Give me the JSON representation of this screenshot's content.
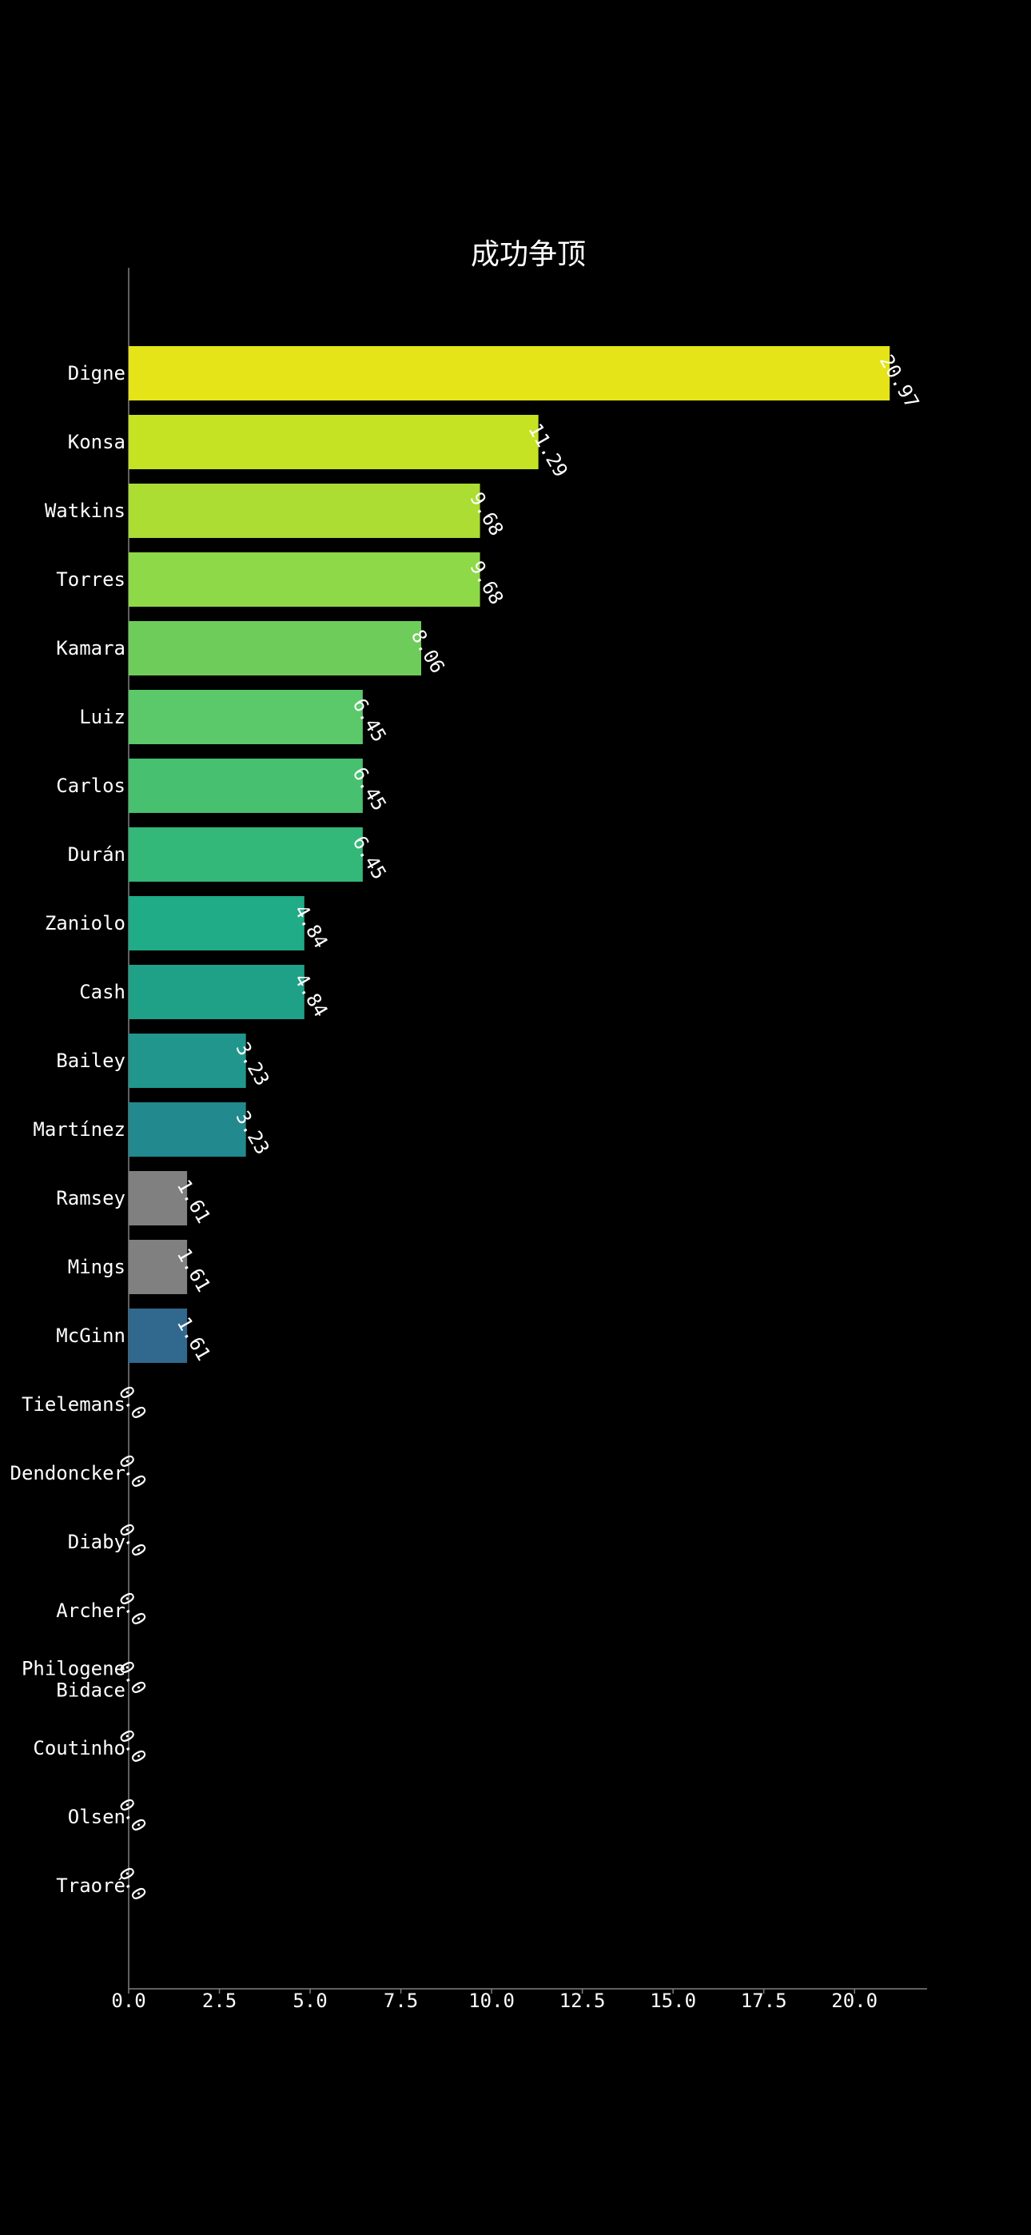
{
  "chart_data": {
    "type": "bar",
    "orientation": "horizontal",
    "title": "成功争顶",
    "xlabel": "",
    "ylabel": "",
    "xlim": [
      0,
      22
    ],
    "x_ticks": [
      "0.0",
      "2.5",
      "5.0",
      "7.5",
      "10.0",
      "12.5",
      "15.0",
      "17.5",
      "20.0"
    ],
    "grid": false,
    "categories": [
      [
        "Digne"
      ],
      [
        "Konsa"
      ],
      [
        "Watkins"
      ],
      [
        "Torres"
      ],
      [
        "Kamara"
      ],
      [
        "Luiz"
      ],
      [
        "Carlos"
      ],
      [
        "Durán"
      ],
      [
        "Zaniolo"
      ],
      [
        "Cash"
      ],
      [
        "Bailey"
      ],
      [
        "Martínez"
      ],
      [
        "Ramsey"
      ],
      [
        "Mings"
      ],
      [
        "McGinn"
      ],
      [
        "Tielemans"
      ],
      [
        "Dendoncker"
      ],
      [
        "Diaby"
      ],
      [
        "Archer"
      ],
      [
        "Philogene",
        "Bidace"
      ],
      [
        "Coutinho"
      ],
      [
        "Olsen"
      ],
      [
        "Traoré"
      ]
    ],
    "values": [
      20.97,
      11.29,
      9.68,
      9.68,
      8.06,
      6.45,
      6.45,
      6.45,
      4.84,
      4.84,
      3.23,
      3.23,
      1.61,
      1.61,
      1.61,
      0.0,
      0.0,
      0.0,
      0.0,
      0.0,
      0.0,
      0.0,
      0.0
    ],
    "value_labels": [
      "20.97",
      "11.29",
      "9.68",
      "9.68",
      "8.06",
      "6.45",
      "6.45",
      "6.45",
      "4.84",
      "4.84",
      "3.23",
      "3.23",
      "1.61",
      "1.61",
      "1.61",
      "0.0",
      "0.0",
      "0.0",
      "0.0",
      "0.0",
      "0.0",
      "0.0",
      "0.0"
    ],
    "colors": [
      "#e4e418",
      "#c6e323",
      "#abdd33",
      "#8ed948",
      "#6ecd5a",
      "#5bc86a",
      "#47c06f",
      "#33b87a",
      "#20ac86",
      "#1fa188",
      "#21968c",
      "#22898e",
      "#808080",
      "#808080",
      "#31688e",
      "#31688e",
      "#31688e",
      "#31688e",
      "#31688e",
      "#31688e",
      "#31688e",
      "#31688e",
      "#31688e"
    ],
    "background_color": "#000000",
    "axis_color": "#808080",
    "text_color": "#ffffff"
  }
}
